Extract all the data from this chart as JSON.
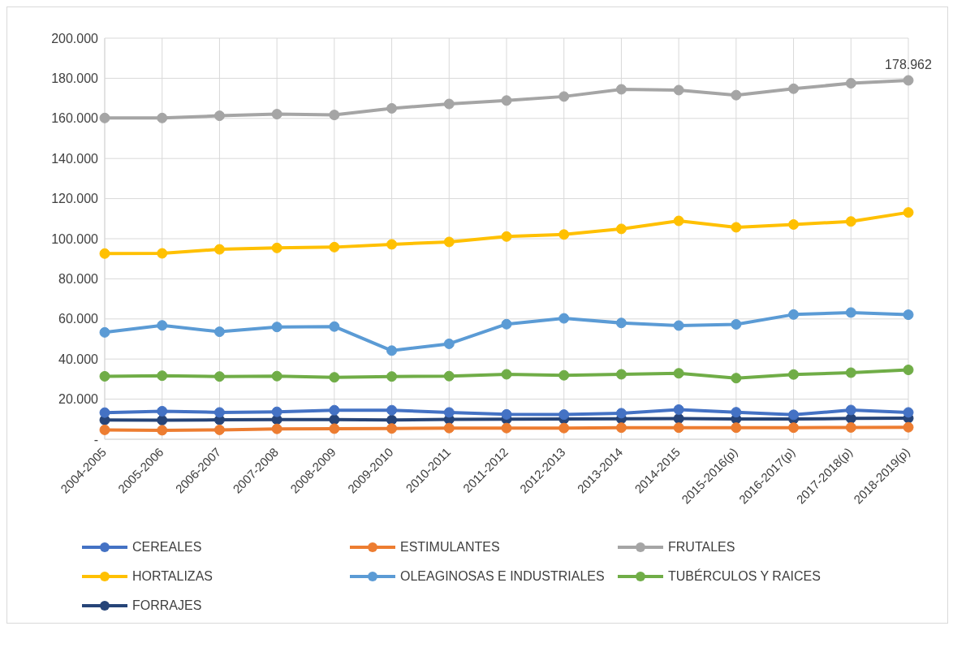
{
  "chart_data": {
    "type": "line",
    "categories": [
      "2004-2005",
      "2005-2006",
      "2006-2007",
      "2007-2008",
      "2008-2009",
      "2009-2010",
      "2010-2011",
      "2011-2012",
      "2012-2013",
      "2013-2014",
      "2014-2015",
      "2015-2016(p)",
      "2016-2017(p)",
      "2017-2018(p)",
      "2018-2019(p)"
    ],
    "series": [
      {
        "name": "CEREALES",
        "color": "#4472c4",
        "values": [
          13.3,
          14.0,
          13.4,
          13.7,
          14.5,
          14.5,
          13.4,
          12.4,
          12.3,
          13.0,
          14.8,
          13.5,
          12.2,
          14.6,
          13.4
        ]
      },
      {
        "name": "ESTIMULANTES",
        "color": "#ed7d31",
        "values": [
          4.7,
          4.5,
          4.7,
          5.2,
          5.3,
          5.4,
          5.6,
          5.6,
          5.6,
          5.8,
          5.8,
          5.8,
          5.8,
          5.9,
          6.0
        ]
      },
      {
        "name": "FRUTALES",
        "color": "#a5a5a5",
        "values": [
          160.2,
          160.2,
          161.3,
          162.1,
          161.7,
          165.0,
          167.2,
          168.9,
          170.9,
          174.5,
          174.1,
          171.6,
          174.8,
          177.5,
          178.962
        ]
      },
      {
        "name": "HORTALIZAS",
        "color": "#ffc000",
        "values": [
          92.6,
          92.7,
          94.7,
          95.4,
          95.8,
          97.2,
          98.4,
          101.1,
          102.1,
          104.9,
          108.9,
          105.7,
          107.1,
          108.6,
          113.1
        ]
      },
      {
        "name": "OLEAGINOSAS E INDUSTRIALES",
        "color": "#5b9bd5",
        "values": [
          53.3,
          56.8,
          53.6,
          56.0,
          56.2,
          44.2,
          47.6,
          57.4,
          60.3,
          58.0,
          56.7,
          57.3,
          62.2,
          63.2,
          62.1
        ]
      },
      {
        "name": "TUBÉRCULOS Y RAICES",
        "color": "#70ad47",
        "values": [
          31.4,
          31.7,
          31.3,
          31.5,
          30.9,
          31.3,
          31.5,
          32.4,
          31.9,
          32.4,
          32.9,
          30.5,
          32.3,
          33.2,
          34.6
        ]
      },
      {
        "name": "FORRAJES",
        "color": "#264478",
        "values": [
          9.6,
          9.5,
          9.7,
          9.8,
          9.8,
          9.6,
          9.9,
          10.0,
          10.1,
          10.2,
          10.3,
          10.1,
          10.1,
          10.4,
          10.5
        ]
      }
    ],
    "ylim": [
      0,
      200
    ],
    "yticks": [
      {
        "value": 0,
        "label": "-"
      },
      {
        "value": 20,
        "label": "20.000"
      },
      {
        "value": 40,
        "label": "40.000"
      },
      {
        "value": 60,
        "label": "60.000"
      },
      {
        "value": 80,
        "label": "80.000"
      },
      {
        "value": 100,
        "label": "100.000"
      },
      {
        "value": 120,
        "label": "120.000"
      },
      {
        "value": 140,
        "label": "140.000"
      },
      {
        "value": 160,
        "label": "160.000"
      },
      {
        "value": 180,
        "label": "180.000"
      },
      {
        "value": 200,
        "label": "200.000"
      }
    ],
    "grid": true,
    "legend": "bottom",
    "marker": "circle",
    "line_style": "solid",
    "annotations": [
      {
        "text": "178.962",
        "x": "2018-2019(p)",
        "y": 178.962
      }
    ]
  }
}
